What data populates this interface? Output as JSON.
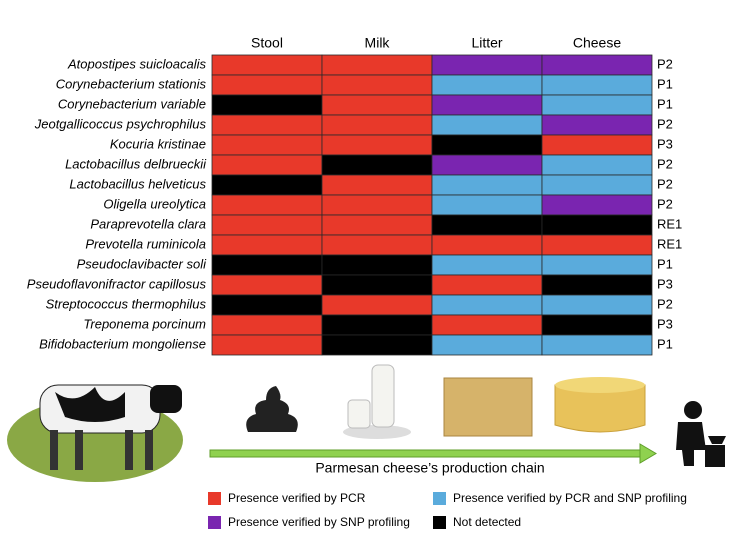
{
  "columns": [
    "Stool",
    "Milk",
    "Litter",
    "Cheese"
  ],
  "rows": [
    {
      "species": "Atopostipes suicloacalis",
      "cells": [
        "#e8392a",
        "#e8392a",
        "#7a25b0",
        "#7a25b0"
      ],
      "group": "P2"
    },
    {
      "species": "Corynebacterium stationis",
      "cells": [
        "#e8392a",
        "#e8392a",
        "#5aabdc",
        "#5aabdc"
      ],
      "group": "P1"
    },
    {
      "species": "Corynebacterium variable",
      "cells": [
        "#000000",
        "#e8392a",
        "#7a25b0",
        "#5aabdc"
      ],
      "group": "P1"
    },
    {
      "species": "Jeotgallicoccus psychrophilus",
      "cells": [
        "#e8392a",
        "#e8392a",
        "#5aabdc",
        "#7a25b0"
      ],
      "group": "P2"
    },
    {
      "species": "Kocuria kristinae",
      "cells": [
        "#e8392a",
        "#e8392a",
        "#000000",
        "#e8392a"
      ],
      "group": "P3"
    },
    {
      "species": "Lactobacillus delbrueckii",
      "cells": [
        "#e8392a",
        "#000000",
        "#7a25b0",
        "#5aabdc"
      ],
      "group": "P2"
    },
    {
      "species": "Lactobacillus helveticus",
      "cells": [
        "#000000",
        "#e8392a",
        "#5aabdc",
        "#5aabdc"
      ],
      "group": "P2"
    },
    {
      "species": "Oligella ureolytica",
      "cells": [
        "#e8392a",
        "#e8392a",
        "#5aabdc",
        "#7a25b0"
      ],
      "group": "P2"
    },
    {
      "species": "Paraprevotella clara",
      "cells": [
        "#e8392a",
        "#e8392a",
        "#000000",
        "#000000"
      ],
      "group": "RE1"
    },
    {
      "species": "Prevotella ruminicola",
      "cells": [
        "#e8392a",
        "#e8392a",
        "#e8392a",
        "#e8392a"
      ],
      "group": "RE1"
    },
    {
      "species": "Pseudoclavibacter soli",
      "cells": [
        "#000000",
        "#000000",
        "#5aabdc",
        "#5aabdc"
      ],
      "group": "P1"
    },
    {
      "species": "Pseudoflavonifractor capillosus",
      "cells": [
        "#e8392a",
        "#000000",
        "#e8392a",
        "#000000"
      ],
      "group": "P3"
    },
    {
      "species": "Streptococcus thermophilus",
      "cells": [
        "#000000",
        "#e8392a",
        "#5aabdc",
        "#5aabdc"
      ],
      "group": "P2"
    },
    {
      "species": "Treponema porcinum",
      "cells": [
        "#e8392a",
        "#000000",
        "#e8392a",
        "#000000"
      ],
      "group": "P3"
    },
    {
      "species": "Bifidobacterium mongoliense",
      "cells": [
        "#e8392a",
        "#000000",
        "#5aabdc",
        "#5aabdc"
      ],
      "group": "P1"
    }
  ],
  "chain_label": "Parmesan cheese’s production chain",
  "legend": [
    {
      "label": "Presence verified by PCR",
      "color": "#e8392a"
    },
    {
      "label": "Presence verified by PCR and SNP profiling",
      "color": "#5aabdc"
    },
    {
      "label": "Presence verified by SNP profiling",
      "color": "#7a25b0"
    },
    {
      "label": "Not detected",
      "color": "#000000"
    }
  ]
}
